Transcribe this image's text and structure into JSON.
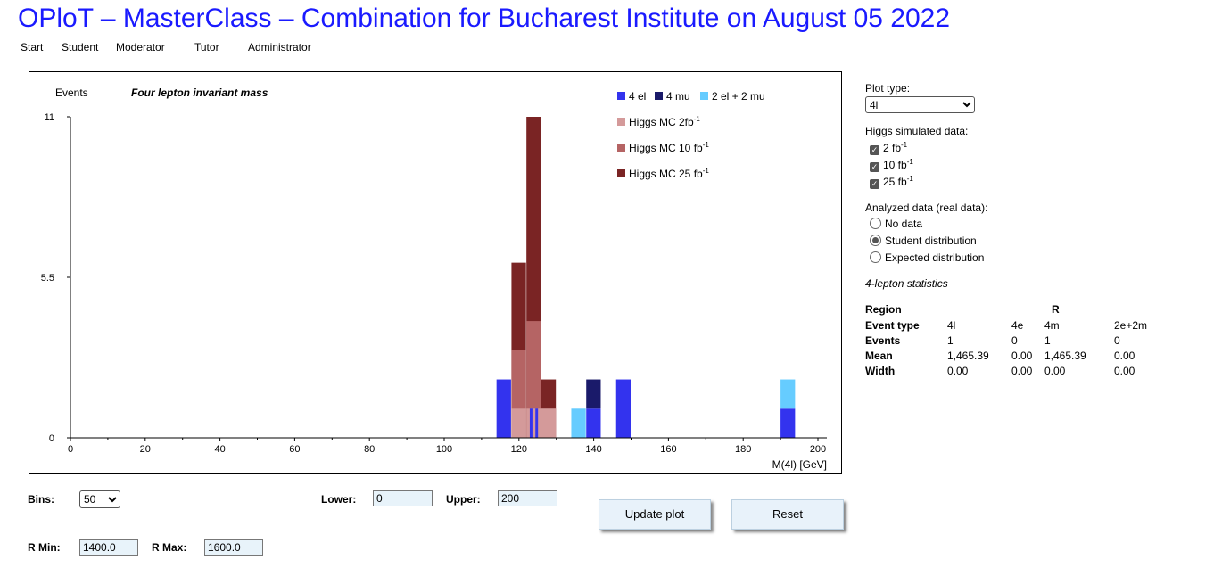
{
  "page": {
    "title": "OPloT – MasterClass – Combination for Bucharest Institute on August 05 2022"
  },
  "nav": [
    "Start",
    "Student",
    "Moderator",
    "Tutor",
    "Administrator"
  ],
  "plot": {
    "ylabel": "Events",
    "title": "Four lepton invariant mass",
    "xlabel": "M(4l) [GeV]",
    "legend": {
      "el4": "4 el",
      "mu4": "4 mu",
      "mixed": "2 el + 2 mu",
      "higgs2_prefix": "Higgs MC 2fb",
      "higgs10_prefix": "Higgs MC 10 fb",
      "higgs25_prefix": "Higgs MC 25 fb",
      "sup": "-1"
    }
  },
  "chart_data": {
    "type": "bar",
    "title": "Four lepton invariant mass",
    "xlabel": "M(4l) [GeV]",
    "ylabel": "Events",
    "xlim": [
      0,
      200
    ],
    "ylim": [
      0,
      11
    ],
    "xticks": [
      "0",
      "20",
      "40",
      "60",
      "80",
      "100",
      "120",
      "140",
      "160",
      "180",
      "200"
    ],
    "yticks": [
      "0",
      "5.5",
      "11"
    ],
    "bin_width": 4,
    "colors": {
      "4el": "#3333ee",
      "4mu": "#1a1a6a",
      "2el2mu": "#66ccff",
      "higgs2": "#d49a9a",
      "higgs10": "#b56464",
      "higgs25": "#7a2424"
    },
    "series": [
      {
        "name": "4 el",
        "points": [
          [
            116,
            2
          ],
          [
            140,
            1
          ],
          [
            148,
            2
          ],
          [
            192,
            1
          ]
        ]
      },
      {
        "name": "4 mu",
        "points": [
          [
            140,
            1
          ]
        ]
      },
      {
        "name": "2 el + 2 mu",
        "points": [
          [
            136,
            1
          ],
          [
            192,
            1
          ]
        ]
      },
      {
        "name": "Higgs MC 2fb-1",
        "points": [
          [
            120,
            1
          ],
          [
            124,
            1
          ],
          [
            128,
            1
          ]
        ]
      },
      {
        "name": "Higgs MC 10 fb-1",
        "points": [
          [
            120,
            3
          ],
          [
            124,
            4
          ],
          [
            128,
            1
          ]
        ]
      },
      {
        "name": "Higgs MC 25 fb-1",
        "points": [
          [
            120,
            6
          ],
          [
            124,
            11
          ],
          [
            128,
            2
          ]
        ]
      }
    ],
    "data_overlay": [
      {
        "name": "4 el",
        "points": [
          [
            124,
            1
          ]
        ]
      }
    ]
  },
  "controls": {
    "bins_label": "Bins:",
    "bins_value": "50",
    "lower_label": "Lower:",
    "lower_value": "0",
    "upper_label": "Upper:",
    "upper_value": "200",
    "rmin_label": "R Min:",
    "rmin_value": "1400.0",
    "rmax_label": "R Max:",
    "rmax_value": "1600.0",
    "update_button": "Update plot",
    "reset_button": "Reset"
  },
  "side": {
    "plot_type_label": "Plot type:",
    "plot_type_value": "4l",
    "higgs_label": "Higgs simulated data:",
    "higgs_options": [
      "2 fb",
      "10 fb",
      "25 fb"
    ],
    "higgs_sup": "-1",
    "higgs_checked": [
      true,
      true,
      true
    ],
    "analyzed_label": "Analyzed data (real data):",
    "analyzed_options": [
      "No data",
      "Student distribution",
      "Expected distribution"
    ],
    "analyzed_selected": 1,
    "stats_title": "4-lepton statistics"
  },
  "stats": {
    "region_label": "Region",
    "region_value": "R",
    "columns": [
      "Event type",
      "4l",
      "4e",
      "4m",
      "2e+2m"
    ],
    "rows": [
      [
        "Events",
        "1",
        "0",
        "1",
        "0"
      ],
      [
        "Mean",
        "1,465.39",
        "0.00",
        "1,465.39",
        "0.00"
      ],
      [
        "Width",
        "0.00",
        "0.00",
        "0.00",
        "0.00"
      ]
    ]
  }
}
